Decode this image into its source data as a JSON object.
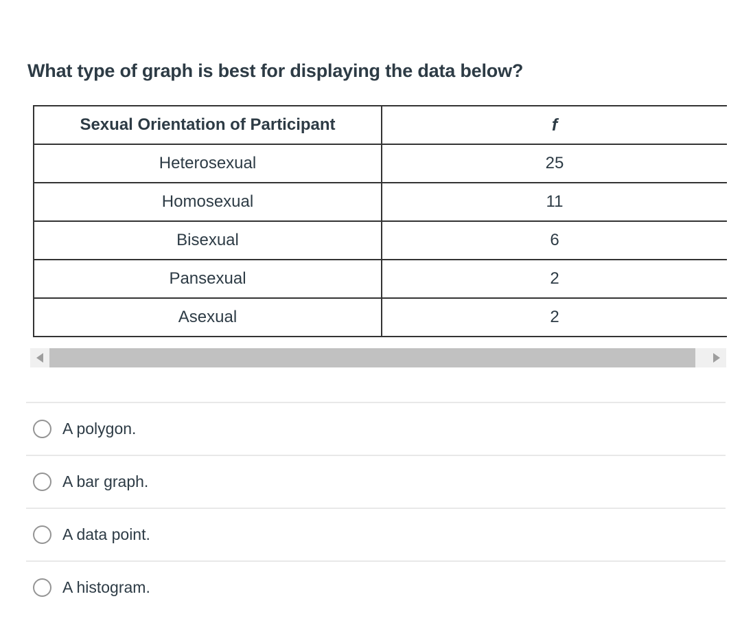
{
  "question": {
    "title": "What type of graph is best for displaying the data below?"
  },
  "data_table": {
    "columns": [
      "Sexual Orientation of Participant",
      "f"
    ],
    "rows": [
      {
        "category": "Heterosexual",
        "f": "25"
      },
      {
        "category": "Homosexual",
        "f": "11"
      },
      {
        "category": "Bisexual",
        "f": "6"
      },
      {
        "category": "Pansexual",
        "f": "2"
      },
      {
        "category": "Asexual",
        "f": "2"
      }
    ]
  },
  "answer_options": [
    {
      "label": "A polygon.",
      "selected": false
    },
    {
      "label": "A bar graph.",
      "selected": false
    },
    {
      "label": "A data point.",
      "selected": false
    },
    {
      "label": "A histogram.",
      "selected": false
    }
  ],
  "scrollbar": {
    "orientation": "horizontal",
    "left_arrow_icon": "scroll-left-arrow-icon",
    "right_arrow_icon": "scroll-right-arrow-icon"
  },
  "colors": {
    "text": "#2D3B45",
    "table_border": "#333333",
    "option_divider": "#e8e8e8",
    "scrollbar_track": "#f0f0f0",
    "scrollbar_thumb": "#c1c1c1",
    "scrollbar_arrow": "#9e9e9e",
    "radio_border": "#949494",
    "background": "#ffffff"
  }
}
